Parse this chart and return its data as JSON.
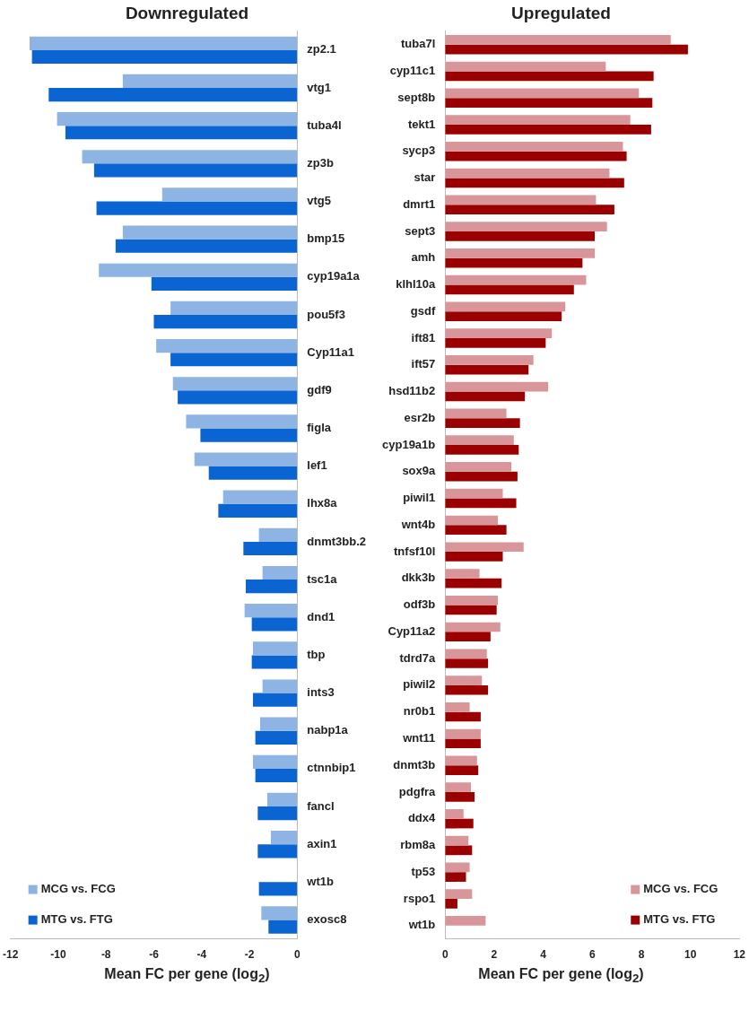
{
  "chart_data": [
    {
      "type": "bar",
      "orientation": "horizontal",
      "title": "Downregulated",
      "xlabel": "Mean FC per gene (log$_{2}$)",
      "categories": [
        "zp2.1",
        "vtg1",
        "tuba4l",
        "zp3b",
        "vtg5",
        "bmp15",
        "cyp19a1a",
        "pou5f3",
        "Cyp11a1",
        "gdf9",
        "figla",
        "lef1",
        "lhx8a",
        "dnmt3bb.2",
        "tsc1a",
        "dnd1",
        "tbp",
        "ints3",
        "nabp1a",
        "ctnnbip1",
        "fancl",
        "axin1",
        "wt1b",
        "exosc8"
      ],
      "series": [
        {
          "name": "MCG vs. FCG",
          "color": "#8db4e2",
          "values": [
            -11.2,
            -7.3,
            -10.05,
            -9.0,
            -5.65,
            -7.3,
            -8.3,
            -5.3,
            -5.9,
            -5.2,
            -4.65,
            -4.3,
            -3.1,
            -1.6,
            -1.45,
            -2.2,
            -1.85,
            -1.45,
            -1.55,
            -1.85,
            -1.25,
            -1.1,
            null,
            -1.5
          ]
        },
        {
          "name": "MTG vs. FTG",
          "color": "#0a64d2",
          "values": [
            -11.1,
            -10.4,
            -9.7,
            -8.5,
            -8.4,
            -7.6,
            -6.1,
            -6.0,
            -5.3,
            -5.0,
            -4.05,
            -3.7,
            -3.3,
            -2.25,
            -2.15,
            -1.9,
            -1.9,
            -1.85,
            -1.75,
            -1.75,
            -1.65,
            -1.65,
            -1.6,
            -1.2
          ]
        }
      ],
      "xlim": [
        -12,
        0
      ],
      "xticks": [
        -12,
        -10,
        -8,
        -6,
        -4,
        -2,
        0
      ],
      "grid": false,
      "legend": "bottom left"
    },
    {
      "type": "bar",
      "orientation": "horizontal",
      "title": "Upregulated",
      "xlabel": "Mean FC per gene (log$_{2}$)",
      "categories": [
        "tuba7l",
        "cyp11c1",
        "sept8b",
        "tekt1",
        "sycp3",
        "star",
        "dmrt1",
        "sept3",
        "amh",
        "klhl10a",
        "gsdf",
        "ift81",
        "ift57",
        "hsd11b2",
        "esr2b",
        "cyp19a1b",
        "sox9a",
        "piwil1",
        "wnt4b",
        "tnfsf10l",
        "dkk3b",
        "odf3b",
        "Cyp11a2",
        "tdrd7a",
        "piwil2",
        "nr0b1",
        "wnt11",
        "dnmt3b",
        "pdgfra",
        "ddx4",
        "rbm8a",
        "tp53",
        "rspo1",
        "wt1b"
      ],
      "series": [
        {
          "name": "MCG vs. FCG",
          "color": "#d9969a",
          "values": [
            9.2,
            6.55,
            7.9,
            7.55,
            7.25,
            6.7,
            6.15,
            6.6,
            6.1,
            5.75,
            4.9,
            4.35,
            3.6,
            4.2,
            2.5,
            2.8,
            2.7,
            2.35,
            2.15,
            3.2,
            1.4,
            2.15,
            2.25,
            1.7,
            1.5,
            1.0,
            1.45,
            1.3,
            1.05,
            0.75,
            0.95,
            1.0,
            1.1,
            1.65
          ]
        },
        {
          "name": "MTG vs. FTG",
          "color": "#9b0000",
          "values": [
            9.9,
            8.5,
            8.45,
            8.4,
            7.4,
            7.3,
            6.9,
            6.1,
            5.6,
            5.25,
            4.75,
            4.1,
            3.4,
            3.25,
            3.05,
            3.0,
            2.95,
            2.9,
            2.5,
            2.35,
            2.3,
            2.1,
            1.85,
            1.75,
            1.75,
            1.45,
            1.45,
            1.35,
            1.2,
            1.15,
            1.1,
            0.85,
            0.5,
            null
          ]
        }
      ],
      "xlim": [
        0,
        12
      ],
      "xticks": [
        0,
        2,
        4,
        6,
        8,
        10,
        12
      ],
      "grid": false,
      "legend": "bottom right"
    }
  ]
}
